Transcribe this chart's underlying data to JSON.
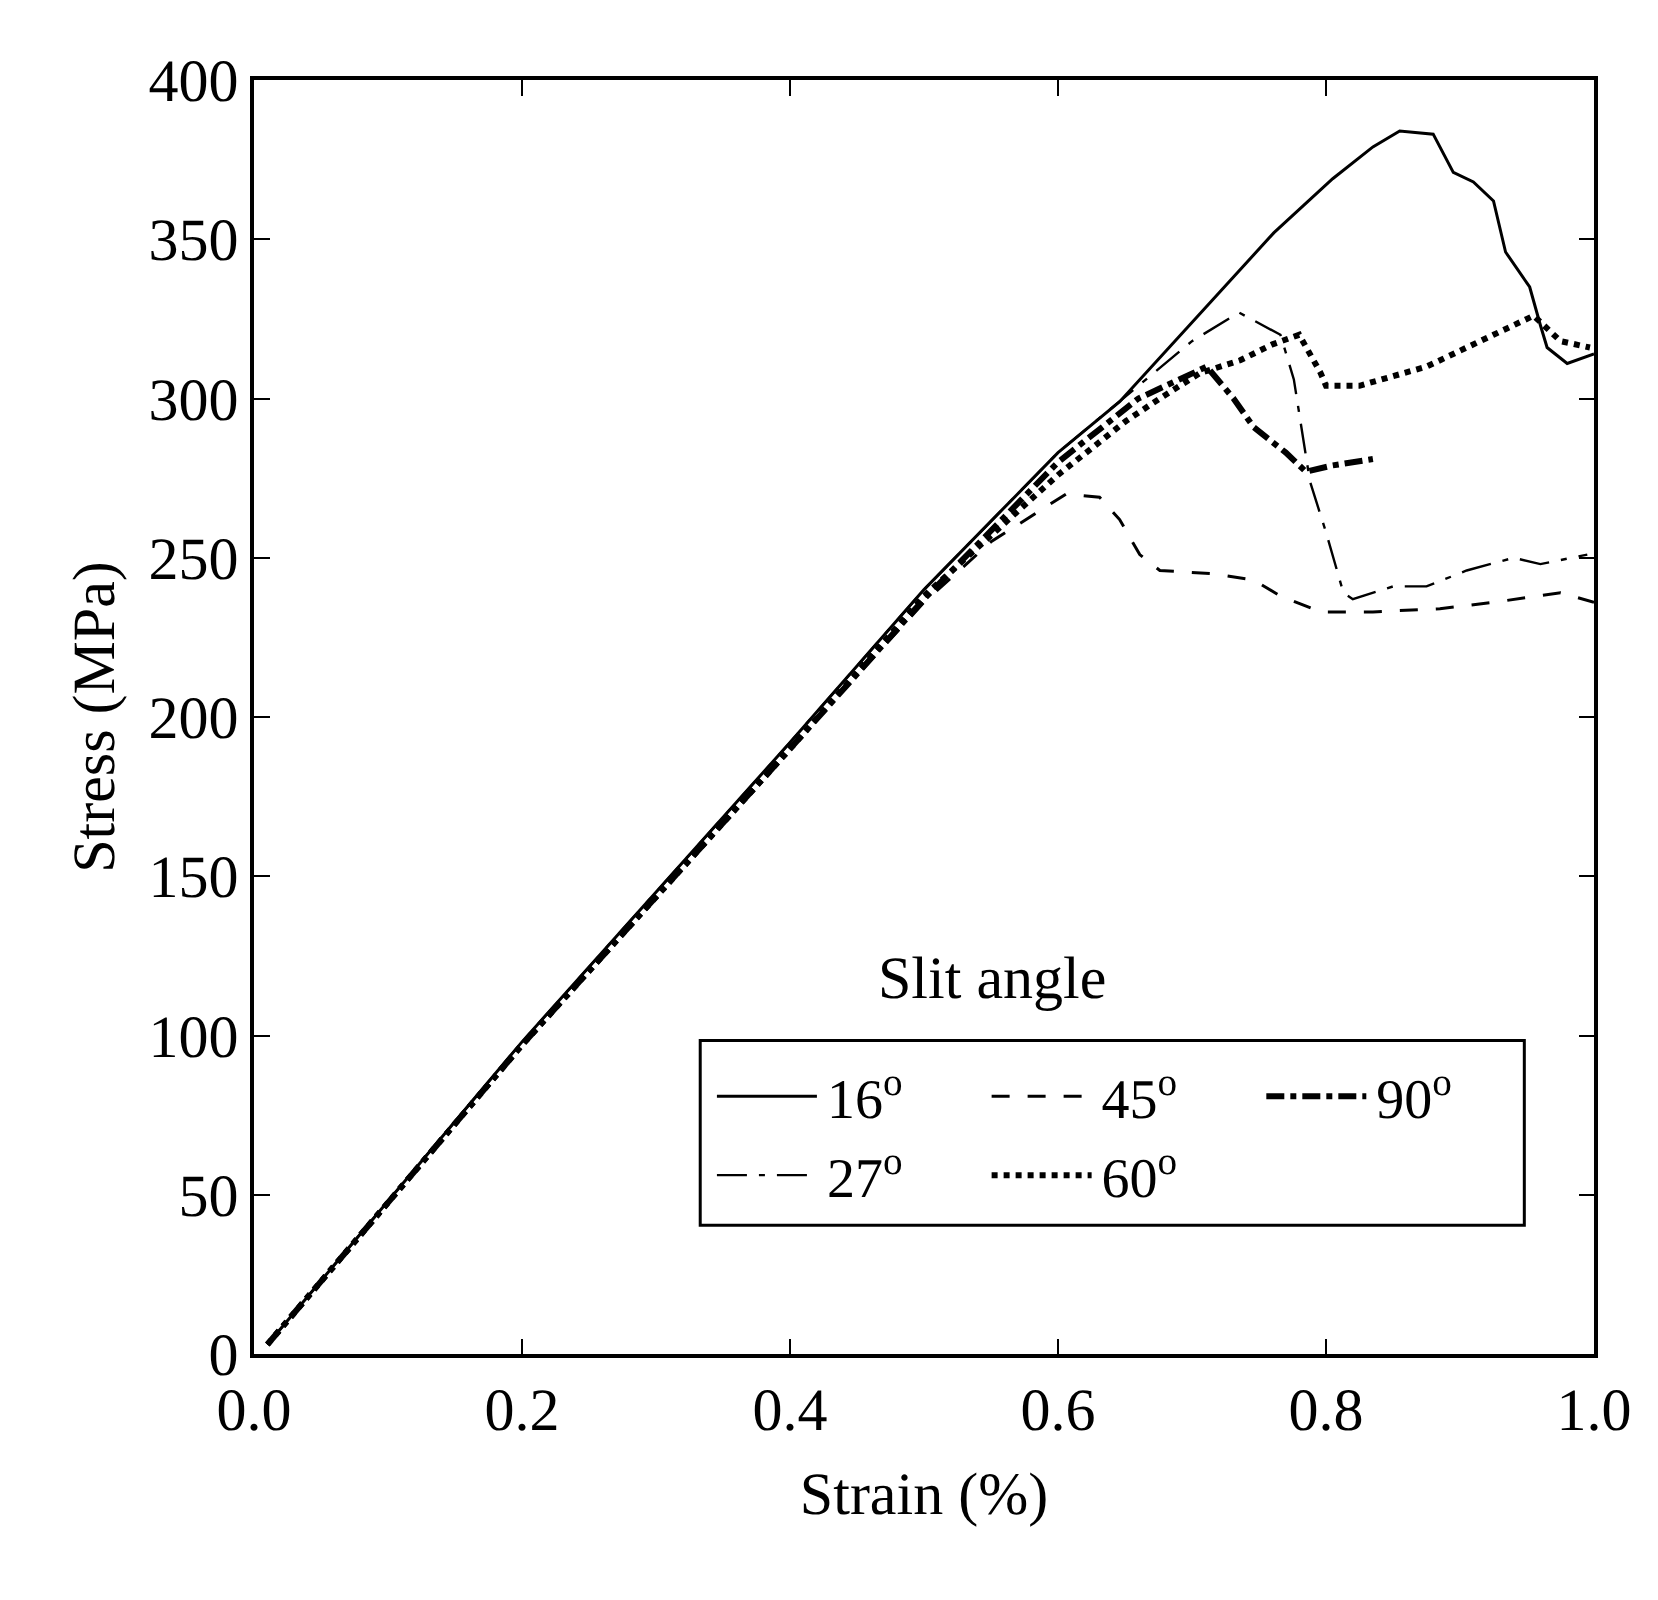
{
  "chart_data": {
    "type": "line",
    "xlabel": "Strain (%)",
    "ylabel": "Stress (MPa)",
    "legend_title": "Slit angle",
    "xlim": [
      0,
      1
    ],
    "xticks": [
      {
        "value": 0,
        "label": "0.0"
      },
      {
        "value": 0.2,
        "label": "0.2"
      },
      {
        "value": 0.4,
        "label": "0.4"
      },
      {
        "value": 0.6,
        "label": "0.6"
      },
      {
        "value": 0.8,
        "label": "0.8"
      },
      {
        "value": 1,
        "label": "1.0"
      }
    ],
    "ylim": [
      0,
      400
    ],
    "yticks": [
      0,
      50,
      100,
      150,
      200,
      250,
      300,
      350,
      400
    ],
    "grid": false,
    "legend": "bottom right",
    "marker": "none",
    "series": [
      {
        "name": "16$^{o}$",
        "color": "#000000",
        "line_style": "solid",
        "x": [
          0.01,
          0.2,
          0.4,
          0.5,
          0.6,
          0.646,
          0.761,
          0.805,
          0.835,
          0.855,
          0.88,
          0.895,
          0.91,
          0.925,
          0.934,
          0.952,
          0.96,
          0.965,
          0.98,
          1.0
        ],
        "values": [
          3,
          98,
          192,
          240,
          283,
          299,
          352,
          369,
          379,
          384,
          383,
          371,
          368,
          362,
          346,
          335,
          323,
          316,
          311,
          314
        ]
      },
      {
        "name": "27$^{o}$",
        "color": "#000000",
        "line_style": "longdashdot",
        "x": [
          0.01,
          0.2,
          0.4,
          0.5,
          0.6,
          0.7,
          0.735,
          0.766,
          0.776,
          0.788,
          0.8,
          0.813,
          0.82,
          0.85,
          0.875,
          0.905,
          0.94,
          0.96,
          0.995
        ],
        "values": [
          3,
          98,
          192,
          240,
          283,
          318,
          327,
          320,
          306,
          274,
          258,
          239,
          237,
          241,
          241,
          246,
          250,
          248,
          251
        ]
      },
      {
        "name": "45$^{o}$",
        "color": "#000000",
        "line_style": "dashed",
        "x": [
          0.01,
          0.2,
          0.4,
          0.5,
          0.55,
          0.606,
          0.631,
          0.646,
          0.661,
          0.676,
          0.716,
          0.746,
          0.766,
          0.796,
          0.835,
          0.885,
          0.925,
          0.975,
          1.0
        ],
        "values": [
          3,
          97,
          190,
          236,
          255,
          270,
          269,
          262,
          251,
          246,
          245,
          243,
          238,
          233,
          233,
          234,
          236,
          239,
          236
        ]
      },
      {
        "name": "60$^{o}$",
        "color": "#000000",
        "line_style": "dotted",
        "x": [
          0.01,
          0.2,
          0.4,
          0.5,
          0.6,
          0.651,
          0.676,
          0.706,
          0.736,
          0.76,
          0.78,
          0.796,
          0.8,
          0.825,
          0.875,
          0.925,
          0.955,
          0.975,
          0.997
        ],
        "values": [
          3,
          97,
          190,
          238,
          276,
          293,
          300,
          308,
          312,
          317,
          320,
          308,
          304,
          304,
          310,
          320,
          326,
          318,
          316
        ]
      },
      {
        "name": "90$^{o}$",
        "color": "#000000",
        "line_style": "dashdot",
        "x": [
          0.01,
          0.2,
          0.4,
          0.5,
          0.6,
          0.66,
          0.711,
          0.731,
          0.746,
          0.77,
          0.785,
          0.805,
          0.835
        ],
        "values": [
          3,
          97,
          190,
          237,
          280,
          300,
          310,
          300,
          291,
          283,
          277,
          279,
          281
        ]
      }
    ]
  }
}
